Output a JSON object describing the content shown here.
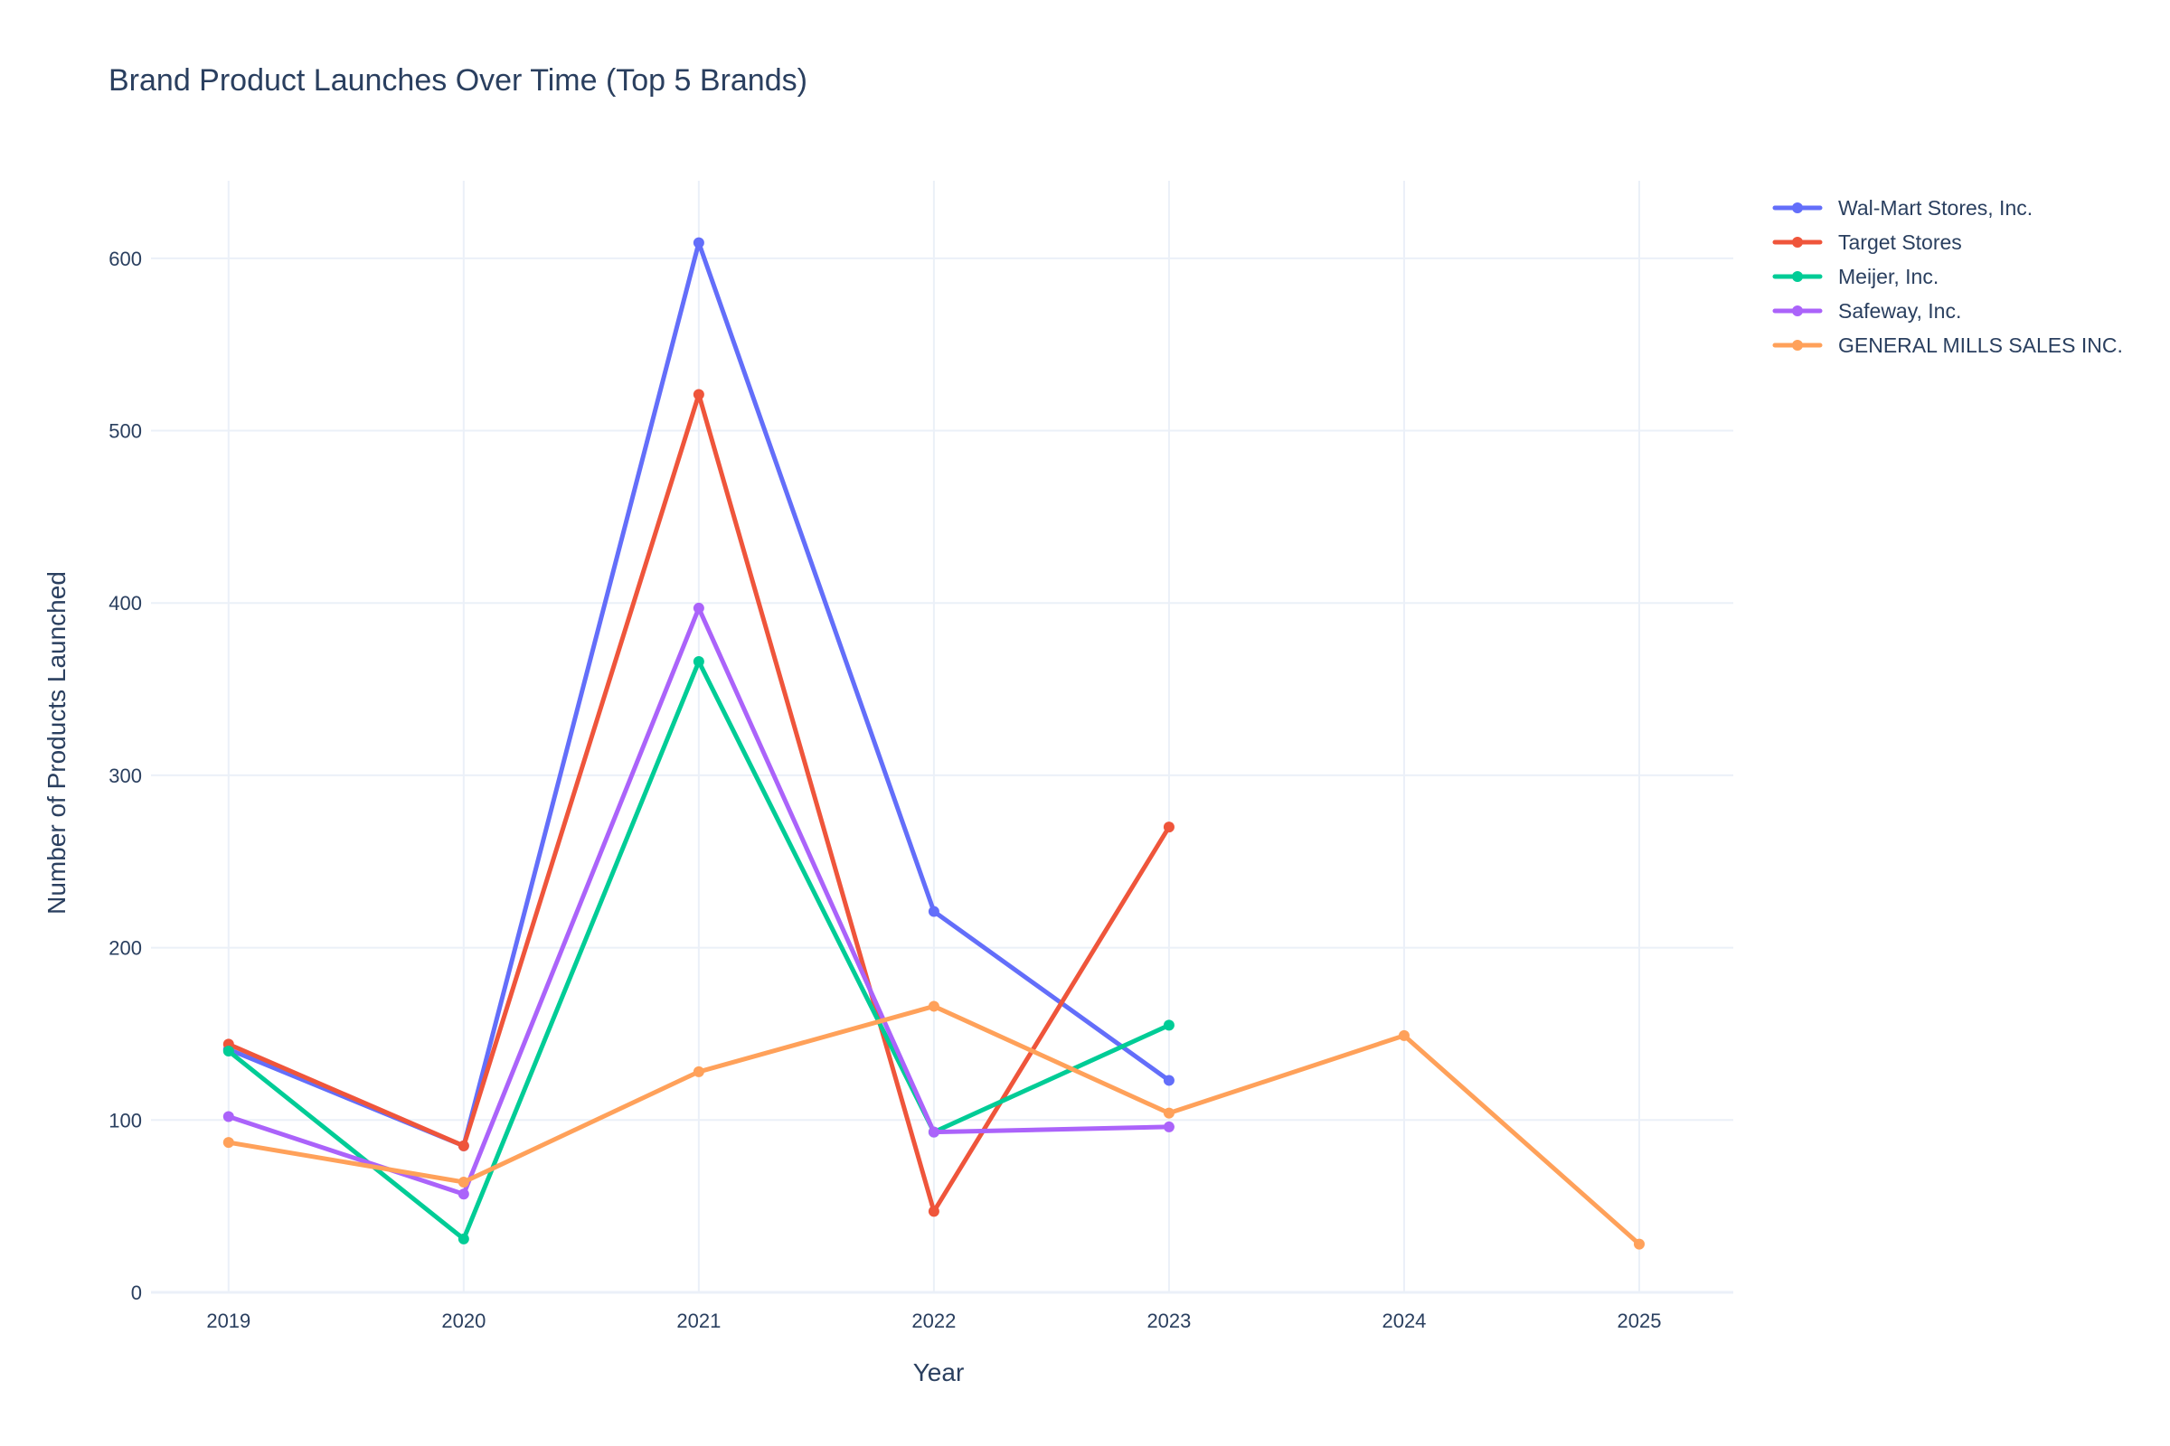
{
  "chart_data": {
    "type": "line",
    "title": "Brand Product Launches Over Time (Top 5 Brands)",
    "xlabel": "Year",
    "ylabel": "Number of Products Launched",
    "x": [
      2019,
      2020,
      2021,
      2022,
      2023,
      2024,
      2025
    ],
    "x_tick_labels": [
      "2019",
      "2020",
      "2021",
      "2022",
      "2023",
      "2024",
      "2025"
    ],
    "xlim": [
      2018.67,
      2025.4
    ],
    "ylim": [
      0,
      645
    ],
    "y_ticks": [
      0,
      100,
      200,
      300,
      400,
      500,
      600
    ],
    "grid": true,
    "legend_position": "top-right",
    "series": [
      {
        "name": "Wal-Mart Stores, Inc.",
        "color": "#636efa",
        "points": [
          [
            2019,
            141
          ],
          [
            2020,
            85
          ],
          [
            2021,
            609
          ],
          [
            2022,
            221
          ],
          [
            2023,
            123
          ]
        ]
      },
      {
        "name": "Target Stores",
        "color": "#ef553b",
        "points": [
          [
            2019,
            144
          ],
          [
            2020,
            85
          ],
          [
            2021,
            521
          ],
          [
            2022,
            47
          ],
          [
            2023,
            270
          ]
        ]
      },
      {
        "name": "Meijer, Inc.",
        "color": "#00cc96",
        "points": [
          [
            2019,
            140
          ],
          [
            2020,
            31
          ],
          [
            2021,
            366
          ],
          [
            2022,
            93
          ],
          [
            2023,
            155
          ]
        ]
      },
      {
        "name": "Safeway, Inc.",
        "color": "#ab63fa",
        "points": [
          [
            2019,
            102
          ],
          [
            2020,
            57
          ],
          [
            2021,
            397
          ],
          [
            2022,
            93
          ],
          [
            2023,
            96
          ]
        ]
      },
      {
        "name": "GENERAL MILLS SALES INC.",
        "color": "#ffa15a",
        "points": [
          [
            2019,
            87
          ],
          [
            2020,
            64
          ],
          [
            2021,
            128
          ],
          [
            2022,
            166
          ],
          [
            2023,
            104
          ],
          [
            2024,
            149
          ],
          [
            2025,
            28
          ]
        ]
      }
    ]
  }
}
